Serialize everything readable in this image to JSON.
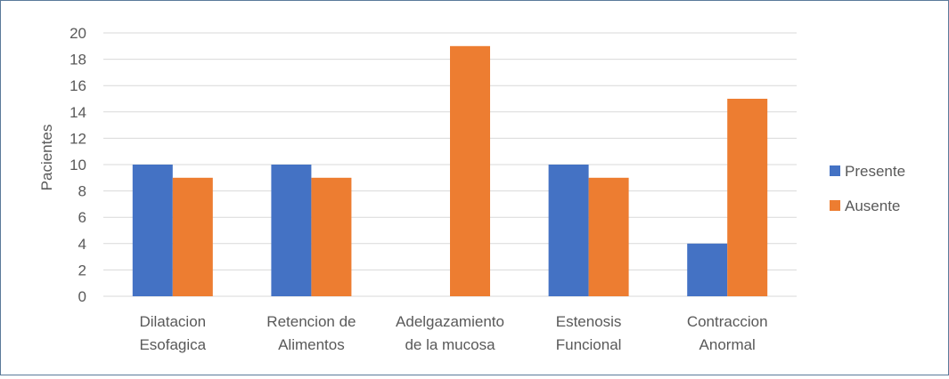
{
  "chart_data": {
    "type": "bar",
    "title": "",
    "xlabel": "",
    "ylabel": "Pacientes",
    "ylim": [
      0,
      20
    ],
    "yticks": [
      0,
      2,
      4,
      6,
      8,
      10,
      12,
      14,
      16,
      18,
      20
    ],
    "grid": true,
    "legend_position": "right",
    "categories": [
      [
        "Dilatacion",
        "Esofagica"
      ],
      [
        "Retencion de",
        "Alimentos"
      ],
      [
        "Adelgazamiento",
        "de la mucosa"
      ],
      [
        "Estenosis",
        "Funcional"
      ],
      [
        "Contraccion",
        "Anormal"
      ]
    ],
    "series": [
      {
        "name": "Presente",
        "color": "#4472c4",
        "values": [
          10,
          10,
          0,
          10,
          4
        ]
      },
      {
        "name": "Ausente",
        "color": "#ed7d31",
        "values": [
          9,
          9,
          19,
          9,
          15
        ]
      }
    ],
    "colors": {
      "grid": "#d9d9d9",
      "axis_text": "#595959",
      "frame": "#5b7a9a"
    }
  }
}
